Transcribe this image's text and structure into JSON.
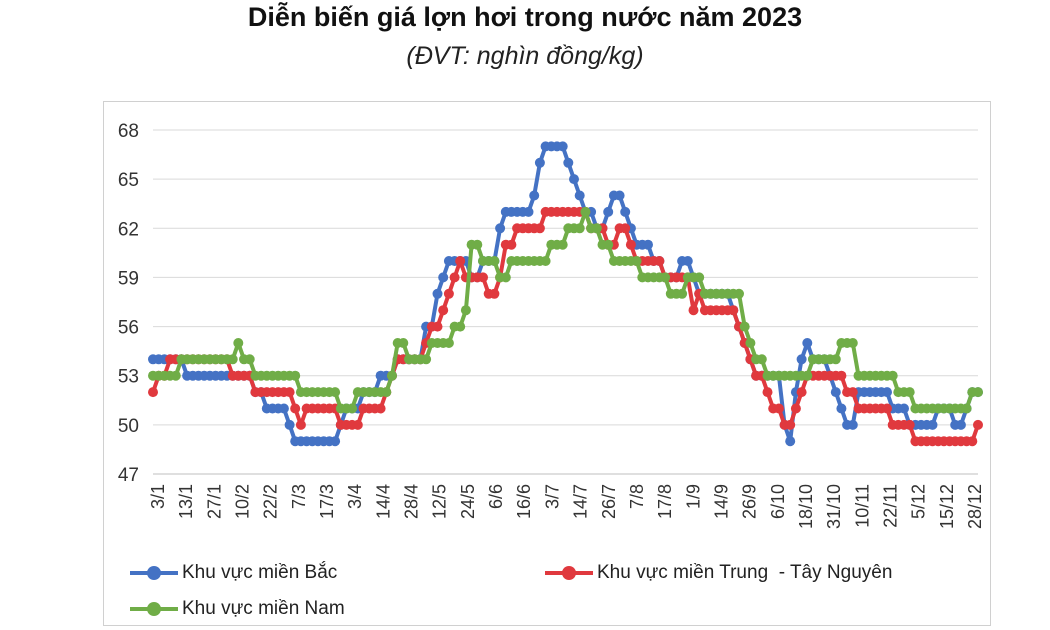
{
  "chart_data": {
    "type": "line",
    "title": "Diễn biến giá lợn hơi trong nước năm 2023",
    "subtitle": "(ĐVT: nghìn đồng/kg)",
    "ylim": [
      47,
      68
    ],
    "yticks": [
      47,
      50,
      53,
      56,
      59,
      62,
      65,
      68
    ],
    "x_tick_labels": [
      "3/1",
      "13/1",
      "27/1",
      "10/2",
      "22/2",
      "7/3",
      "17/3",
      "3/4",
      "14/4",
      "28/4",
      "12/5",
      "24/5",
      "6/6",
      "16/6",
      "3/7",
      "14/7",
      "26/7",
      "7/8",
      "17/8",
      "1/9",
      "14/9",
      "26/9",
      "6/10",
      "18/10",
      "31/10",
      "10/11",
      "22/11",
      "5/12",
      "15/12",
      "28/12"
    ],
    "grid": true,
    "legend_position": "bottom",
    "series": [
      {
        "name": "Khu vực miền Bắc",
        "color": "#4472c4",
        "values": [
          54,
          54,
          54,
          54,
          54,
          54,
          53,
          53,
          53,
          53,
          53,
          53,
          53,
          53,
          53,
          53,
          53,
          53,
          52,
          52,
          51,
          51,
          51,
          51,
          50,
          49,
          49,
          49,
          49,
          49,
          49,
          49,
          49,
          50,
          51,
          51,
          51,
          52,
          52,
          52,
          53,
          53,
          53,
          54,
          54,
          54,
          54,
          54,
          56,
          56,
          58,
          59,
          60,
          60,
          60,
          60,
          59,
          59,
          60,
          60,
          60,
          62,
          63,
          63,
          63,
          63,
          63,
          64,
          66,
          67,
          67,
          67,
          67,
          66,
          65,
          64,
          63,
          63,
          62,
          62,
          63,
          64,
          64,
          63,
          62,
          61,
          61,
          61,
          60,
          60,
          59,
          59,
          59,
          60,
          60,
          59,
          58,
          58,
          58,
          58,
          58,
          58,
          57,
          56,
          55,
          54,
          53,
          53,
          53,
          53,
          53,
          50,
          49,
          52,
          54,
          55,
          54,
          54,
          54,
          53,
          52,
          51,
          50,
          50,
          52,
          52,
          52,
          52,
          52,
          52,
          51,
          51,
          51,
          50,
          50,
          50,
          50,
          50,
          51,
          51,
          51,
          50,
          50,
          51,
          52,
          52
        ]
      },
      {
        "name": "Khu vực miền Trung  - Tây Nguyên",
        "color": "#e0393e",
        "values": [
          52,
          53,
          53,
          54,
          54,
          54,
          54,
          54,
          54,
          54,
          54,
          54,
          54,
          54,
          53,
          53,
          53,
          53,
          52,
          52,
          52,
          52,
          52,
          52,
          52,
          51,
          50,
          51,
          51,
          51,
          51,
          51,
          51,
          50,
          50,
          50,
          50,
          51,
          51,
          51,
          51,
          52,
          53,
          54,
          54,
          54,
          54,
          54,
          55,
          56,
          56,
          57,
          58,
          59,
          60,
          59,
          59,
          59,
          59,
          58,
          58,
          59,
          61,
          61,
          62,
          62,
          62,
          62,
          62,
          63,
          63,
          63,
          63,
          63,
          63,
          63,
          63,
          62,
          62,
          62,
          61,
          61,
          62,
          62,
          61,
          60,
          60,
          60,
          60,
          60,
          59,
          59,
          59,
          59,
          59,
          57,
          58,
          57,
          57,
          57,
          57,
          57,
          57,
          56,
          55,
          54,
          53,
          53,
          52,
          51,
          51,
          50,
          50,
          51,
          52,
          53,
          53,
          53,
          53,
          53,
          53,
          53,
          52,
          52,
          51,
          51,
          51,
          51,
          51,
          51,
          50,
          50,
          50,
          50,
          49,
          49,
          49,
          49,
          49,
          49,
          49,
          49,
          49,
          49,
          49,
          50
        ]
      },
      {
        "name": "Khu vực miền Nam",
        "color": "#70ad47",
        "values": [
          53,
          53,
          53,
          53,
          53,
          54,
          54,
          54,
          54,
          54,
          54,
          54,
          54,
          54,
          54,
          55,
          54,
          54,
          53,
          53,
          53,
          53,
          53,
          53,
          53,
          53,
          52,
          52,
          52,
          52,
          52,
          52,
          52,
          51,
          51,
          51,
          52,
          52,
          52,
          52,
          52,
          52,
          53,
          55,
          55,
          54,
          54,
          54,
          54,
          55,
          55,
          55,
          55,
          56,
          56,
          57,
          61,
          61,
          60,
          60,
          60,
          59,
          59,
          60,
          60,
          60,
          60,
          60,
          60,
          60,
          61,
          61,
          61,
          62,
          62,
          62,
          63,
          62,
          62,
          61,
          61,
          60,
          60,
          60,
          60,
          60,
          59,
          59,
          59,
          59,
          59,
          58,
          58,
          58,
          59,
          59,
          59,
          58,
          58,
          58,
          58,
          58,
          58,
          58,
          56,
          55,
          54,
          54,
          53,
          53,
          53,
          53,
          53,
          53,
          53,
          53,
          54,
          54,
          54,
          54,
          54,
          55,
          55,
          55,
          53,
          53,
          53,
          53,
          53,
          53,
          53,
          52,
          52,
          52,
          51,
          51,
          51,
          51,
          51,
          51,
          51,
          51,
          51,
          51,
          52,
          52
        ]
      }
    ]
  }
}
